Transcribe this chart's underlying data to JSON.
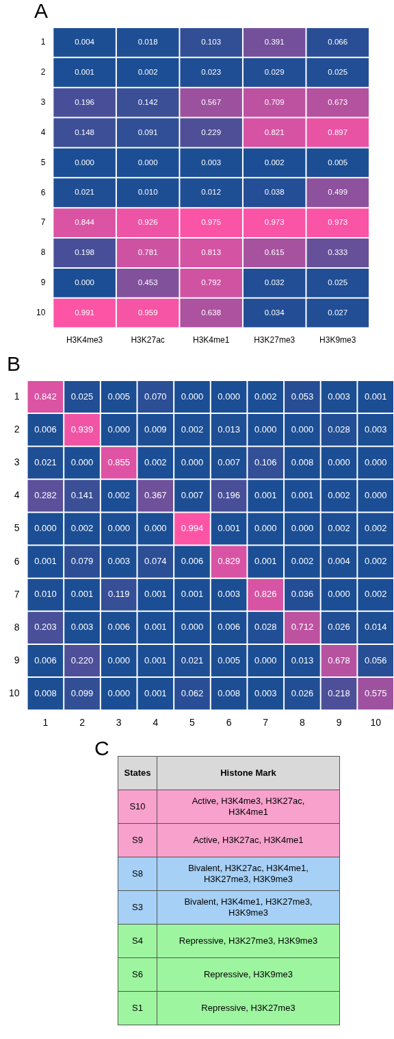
{
  "chart_data": [
    {
      "type": "heatmap",
      "title": "A",
      "categories": [
        "H3K4me3",
        "H3K27ac",
        "H3K4me1",
        "H3K27me3",
        "H3K9me3"
      ],
      "y_categories": [
        "1",
        "2",
        "3",
        "4",
        "5",
        "6",
        "7",
        "8",
        "9",
        "10"
      ],
      "cells": [
        [
          0.004,
          0.018,
          0.103,
          0.391,
          0.066
        ],
        [
          0.001,
          0.002,
          0.023,
          0.029,
          0.025
        ],
        [
          0.196,
          0.142,
          0.567,
          0.709,
          0.673
        ],
        [
          0.148,
          0.091,
          0.229,
          0.821,
          0.897
        ],
        [
          0,
          0,
          0.003,
          0.002,
          0.005
        ],
        [
          0.021,
          0.01,
          0.012,
          0.038,
          0.499
        ],
        [
          0.844,
          0.926,
          0.975,
          0.973,
          0.973
        ],
        [
          0.198,
          0.781,
          0.813,
          0.615,
          0.333
        ],
        [
          0,
          0.453,
          0.792,
          0.032,
          0.025
        ],
        [
          0.991,
          0.959,
          0.638,
          0.034,
          0.027
        ]
      ],
      "cell_labels": [
        [
          "0.004",
          "0.018",
          "0.103",
          "0.391",
          "0.066"
        ],
        [
          "0.001",
          "0.002",
          "0.023",
          "0.029",
          "0.025"
        ],
        [
          "0.196",
          "0.142",
          "0.567",
          "0.709",
          "0.673"
        ],
        [
          "0.148",
          "0.091",
          "0.229",
          "0.821",
          "0.897"
        ],
        [
          "0.000",
          "0.000",
          "0.003",
          "0.002",
          "0.005"
        ],
        [
          "0.021",
          "0.010",
          "0.012",
          "0.038",
          "0.499"
        ],
        [
          "0.844",
          "0.926",
          "0.975",
          "0.973",
          "0.973"
        ],
        [
          "0.198",
          "0.781",
          "0.813",
          "0.615",
          "0.333"
        ],
        [
          "0.000",
          "0.453",
          "0.792",
          "0.032",
          "0.025"
        ],
        [
          "0.991",
          "0.959",
          "0.638",
          "0.034",
          "0.027"
        ]
      ]
    },
    {
      "type": "heatmap",
      "title": "B",
      "categories": [
        "1",
        "2",
        "3",
        "4",
        "5",
        "6",
        "7",
        "8",
        "9",
        "10"
      ],
      "y_categories": [
        "1",
        "2",
        "3",
        "4",
        "5",
        "6",
        "7",
        "8",
        "9",
        "10"
      ],
      "cells": [
        [
          0.842,
          0.025,
          0.005,
          0.07,
          0,
          0,
          0.002,
          0.053,
          0.003,
          0.001
        ],
        [
          0.006,
          0.939,
          0,
          0.009,
          0.002,
          0.013,
          0,
          0,
          0.028,
          0.003
        ],
        [
          0.021,
          0,
          0.855,
          0.002,
          0,
          0.007,
          0.106,
          0.008,
          0,
          0
        ],
        [
          0.282,
          0.141,
          0.002,
          0.367,
          0.007,
          0.196,
          0.001,
          0.001,
          0.002,
          0
        ],
        [
          0,
          0.002,
          0,
          0,
          0.994,
          0.001,
          0,
          0,
          0.002,
          0.002
        ],
        [
          0.001,
          0.079,
          0.003,
          0.074,
          0.006,
          0.829,
          0.001,
          0.002,
          0.004,
          0.002
        ],
        [
          0.01,
          0.001,
          0.119,
          0.001,
          0.001,
          0.003,
          0.826,
          0.036,
          0,
          0.002
        ],
        [
          0.203,
          0.003,
          0.006,
          0.001,
          0,
          0.006,
          0.028,
          0.712,
          0.026,
          0.014
        ],
        [
          0.006,
          0.22,
          0,
          0.001,
          0.021,
          0.005,
          0,
          0.013,
          0.678,
          0.056
        ],
        [
          0.008,
          0.099,
          0,
          0.001,
          0.062,
          0.008,
          0.003,
          0.026,
          0.218,
          0.575
        ]
      ],
      "cell_labels": [
        [
          "0.842",
          "0.025",
          "0.005",
          "0.070",
          "0.000",
          "0.000",
          "0.002",
          "0.053",
          "0.003",
          "0.001"
        ],
        [
          "0.006",
          "0.939",
          "0.000",
          "0.009",
          "0.002",
          "0.013",
          "0.000",
          "0.000",
          "0.028",
          "0.003"
        ],
        [
          "0.021",
          "0.000",
          "0.855",
          "0.002",
          "0.000",
          "0.007",
          "0.106",
          "0.008",
          "0.000",
          "0.000"
        ],
        [
          "0.282",
          "0.141",
          "0.002",
          "0.367",
          "0.007",
          "0.196",
          "0.001",
          "0.001",
          "0.002",
          "0.000"
        ],
        [
          "0.000",
          "0.002",
          "0.000",
          "0.000",
          "0.994",
          "0.001",
          "0.000",
          "0.000",
          "0.002",
          "0.002"
        ],
        [
          "0.001",
          "0.079",
          "0.003",
          "0.074",
          "0.006",
          "0.829",
          "0.001",
          "0.002",
          "0.004",
          "0.002"
        ],
        [
          "0.010",
          "0.001",
          "0.119",
          "0.001",
          "0.001",
          "0.003",
          "0.826",
          "0.036",
          "0.000",
          "0.002"
        ],
        [
          "0.203",
          "0.003",
          "0.006",
          "0.001",
          "0.000",
          "0.006",
          "0.028",
          "0.712",
          "0.026",
          "0.014"
        ],
        [
          "0.006",
          "0.220",
          "0.000",
          "0.001",
          "0.021",
          "0.005",
          "0.000",
          "0.013",
          "0.678",
          "0.056"
        ],
        [
          "0.008",
          "0.099",
          "0.000",
          "0.001",
          "0.062",
          "0.008",
          "0.003",
          "0.026",
          "0.218",
          "0.575"
        ]
      ]
    },
    {
      "type": "other",
      "title": "C",
      "annotations": [
        "States",
        "Histone Mark",
        "S10",
        "Active, H3K4me3, H3K27ac, H3K4me1",
        "S9",
        "Active, H3K27ac, H3K4me1",
        "S8",
        "Bivalent, H3K27ac, H3K4me1, H3K27me3, H3K9me3",
        "S3",
        "Bivalent, H3K4me1, H3K27me3, H3K9me3",
        "S4",
        "Repressive, H3K27me3, H3K9me3",
        "S6",
        "Repressive, H3K9me3",
        "S1",
        "Repressive, H3K27me3"
      ],
      "colors": [
        "#d9d9d9",
        "#f7a1cc",
        "#f7a1cc",
        "#a6d0f5",
        "#a6d0f5",
        "#9ef5a0",
        "#9ef5a0",
        "#9ef5a0"
      ]
    }
  ]
}
